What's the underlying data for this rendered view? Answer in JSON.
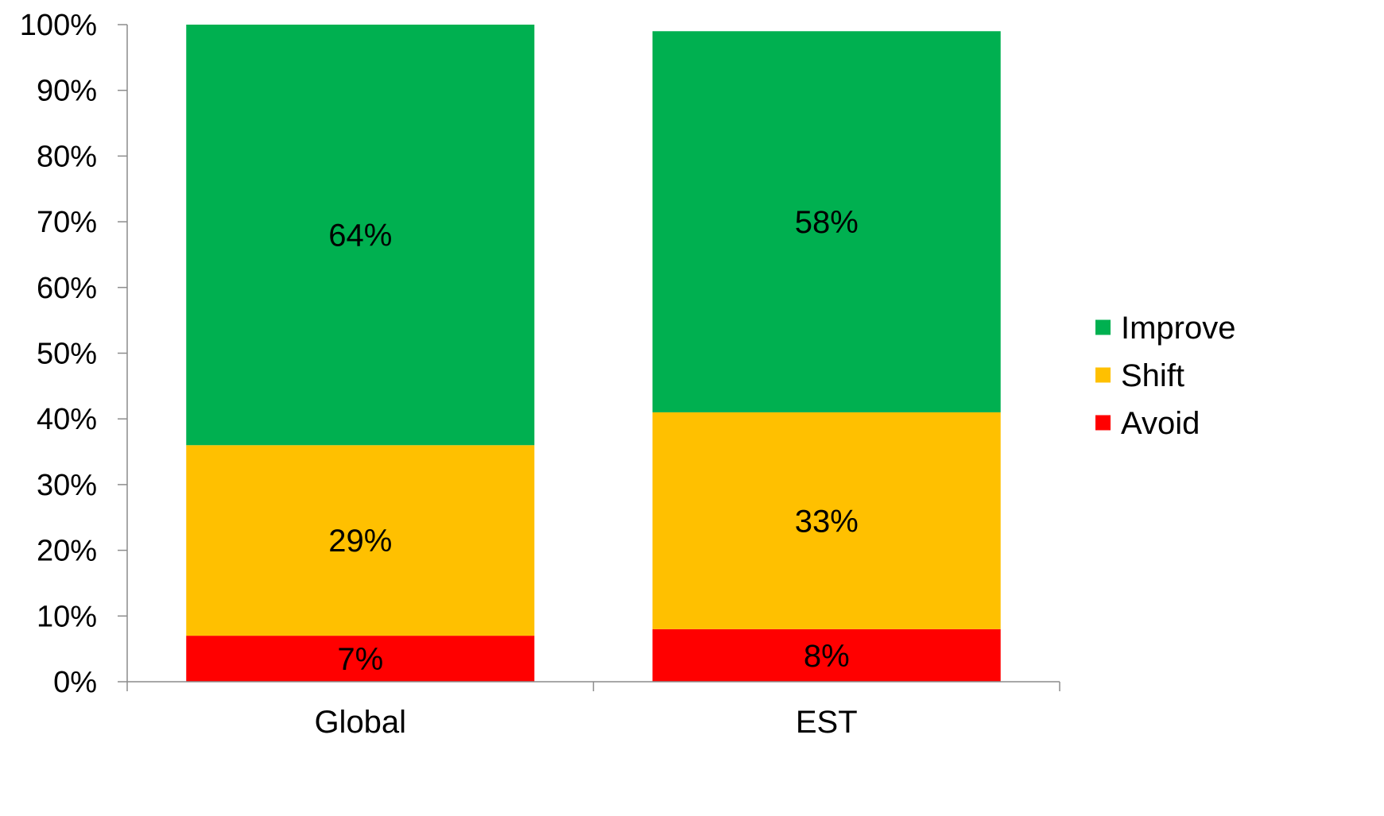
{
  "chart_data": {
    "type": "bar",
    "stacked": true,
    "percent_stacked": true,
    "categories": [
      "Global",
      "EST"
    ],
    "series": [
      {
        "name": "Avoid",
        "values": [
          7,
          8
        ],
        "labels": [
          "7%",
          "8%"
        ],
        "color": "#ff0000"
      },
      {
        "name": "Shift",
        "values": [
          29,
          33
        ],
        "labels": [
          "29%",
          "33%"
        ],
        "color": "#ffc000"
      },
      {
        "name": "Improve",
        "values": [
          64,
          58
        ],
        "labels": [
          "64%",
          "58%"
        ],
        "color": "#00b050"
      }
    ],
    "yticks": [
      "0%",
      "10%",
      "20%",
      "30%",
      "40%",
      "50%",
      "60%",
      "70%",
      "80%",
      "90%",
      "100%"
    ],
    "ylim": [
      0,
      100
    ],
    "grid": false,
    "legend": {
      "position": "right",
      "entries": [
        "Improve",
        "Shift",
        "Avoid"
      ]
    }
  }
}
